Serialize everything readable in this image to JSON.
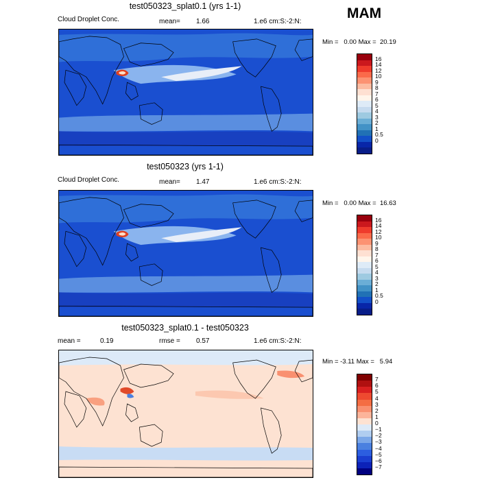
{
  "season": "MAM",
  "chart_data": [
    {
      "type": "heatmap",
      "title": "test050323_splat0.1 (yrs 1-1)",
      "field_label": "Cloud Droplet Conc.",
      "stat_label": "mean=",
      "stat_value": "1.66",
      "units": "1.e6 cm:S:-2:N:",
      "min_label": "Min =",
      "min_value": "0.00",
      "max_label": "Max =",
      "max_value": "20.19",
      "colorbar": {
        "colors": [
          "#99000d",
          "#cb181d",
          "#ef3b2c",
          "#fb6a4a",
          "#fc9272",
          "#fcbba1",
          "#fee0d2",
          "#fff5eb",
          "#deebf7",
          "#c6dbef",
          "#9ecae1",
          "#6baed6",
          "#4292c6",
          "#2171b5",
          "#1350c8",
          "#0826a8",
          "#081d88"
        ],
        "levels": [
          "16",
          "14",
          "12",
          "10",
          "9",
          "8",
          "7",
          "6",
          "5",
          "4",
          "3",
          "2",
          "1",
          "0.5",
          "0"
        ]
      }
    },
    {
      "type": "heatmap",
      "title": "test050323 (yrs 1-1)",
      "field_label": "Cloud Droplet Conc.",
      "stat_label": "mean=",
      "stat_value": "1.47",
      "units": "1.e6 cm:S:-2:N:",
      "min_label": "Min =",
      "min_value": "0.00",
      "max_label": "Max =",
      "max_value": "16.63",
      "colorbar": {
        "colors": [
          "#99000d",
          "#cb181d",
          "#ef3b2c",
          "#fb6a4a",
          "#fc9272",
          "#fcbba1",
          "#fee0d2",
          "#fff5eb",
          "#deebf7",
          "#c6dbef",
          "#9ecae1",
          "#6baed6",
          "#4292c6",
          "#2171b5",
          "#1350c8",
          "#0826a8",
          "#081d88"
        ],
        "levels": [
          "16",
          "14",
          "12",
          "10",
          "9",
          "8",
          "7",
          "6",
          "5",
          "4",
          "3",
          "2",
          "1",
          "0.5",
          "0"
        ]
      }
    },
    {
      "type": "heatmap",
      "title": "test050323_splat0.1 - test050323",
      "stat_label": "mean =",
      "stat_value": "0.19",
      "rmse_label": "rmse =",
      "rmse_value": "0.57",
      "units": "1.e6 cm:S:-2:N:",
      "min_label": "Min =",
      "min_value": "-3.11",
      "max_label": "Max =",
      "max_value": "5.94",
      "colorbar": {
        "colors": [
          "#800000",
          "#b01010",
          "#d92020",
          "#ee4a30",
          "#f46d43",
          "#f99070",
          "#fcb49a",
          "#fde2d2",
          "#ddeaf8",
          "#b0cdf0",
          "#7ba7e8",
          "#4a80e0",
          "#2c5ee0",
          "#1a3ed0",
          "#0c22b8",
          "#000080"
        ],
        "levels": [
          "7",
          "6",
          "5",
          "4",
          "3",
          "2",
          "1",
          "0",
          "−1",
          "−2",
          "−3",
          "−4",
          "−5",
          "−6",
          "−7"
        ]
      }
    }
  ]
}
